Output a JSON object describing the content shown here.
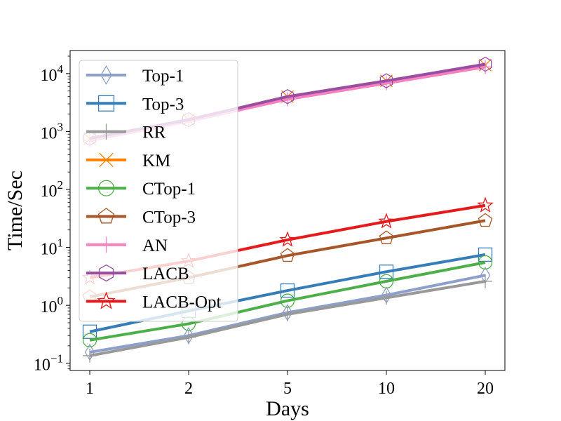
{
  "chart_data": {
    "type": "line",
    "title": "",
    "xlabel": "Days",
    "ylabel": "Time/Sec",
    "yscale": "log",
    "ylim": [
      0.075,
      25000
    ],
    "categories": [
      "1",
      "2",
      "5",
      "10",
      "20"
    ],
    "y_tick_values": [
      0.1,
      1,
      10,
      100,
      1000,
      10000
    ],
    "y_tick_labels": [
      {
        "base": "10",
        "exp": "−1"
      },
      {
        "base": "10",
        "exp": "0"
      },
      {
        "base": "10",
        "exp": "1"
      },
      {
        "base": "10",
        "exp": "2"
      },
      {
        "base": "10",
        "exp": "3"
      },
      {
        "base": "10",
        "exp": "4"
      }
    ],
    "legend_position": "upper-left",
    "grid": false,
    "series": [
      {
        "name": "Top-1",
        "color": "#8da0cb",
        "marker": "thin_diamond",
        "values": [
          0.155,
          0.3,
          0.75,
          1.5,
          3.3
        ]
      },
      {
        "name": "Top-3",
        "color": "#377eb8",
        "marker": "square",
        "values": [
          0.35,
          0.8,
          1.8,
          3.8,
          7.5
        ]
      },
      {
        "name": "RR",
        "color": "#999999",
        "marker": "plus",
        "values": [
          0.135,
          0.28,
          0.7,
          1.35,
          2.6
        ]
      },
      {
        "name": "KM",
        "color": "#ff7f00",
        "marker": "x",
        "values": [
          750,
          1600,
          4000,
          7500,
          14000
        ]
      },
      {
        "name": "CTop-1",
        "color": "#4daf4a",
        "marker": "circle",
        "values": [
          0.25,
          0.48,
          1.2,
          2.6,
          5.5
        ]
      },
      {
        "name": "CTop-3",
        "color": "#a65628",
        "marker": "pentagon",
        "values": [
          1.4,
          3.0,
          7.2,
          14.5,
          29
        ]
      },
      {
        "name": "AN",
        "color": "#f781bf",
        "marker": "plus",
        "values": [
          700,
          1500,
          3600,
          6800,
          13000
        ]
      },
      {
        "name": "LACB",
        "color": "#984ea3",
        "marker": "hexagon",
        "values": [
          760,
          1600,
          4000,
          7500,
          14500
        ]
      },
      {
        "name": "LACB-Opt",
        "color": "#e41a1c",
        "marker": "star",
        "values": [
          3.0,
          5.8,
          13.5,
          28,
          53
        ]
      }
    ]
  }
}
